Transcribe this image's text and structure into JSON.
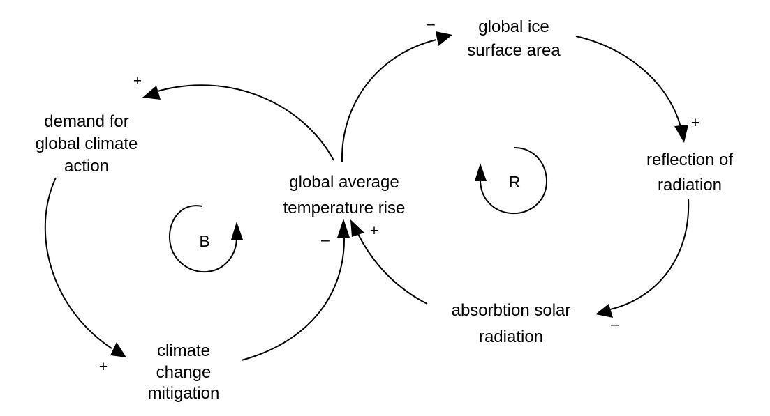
{
  "diagram": {
    "type": "causal-loop",
    "nodes": {
      "global_ice_surface_area": {
        "lines": [
          "global ice",
          "surface area"
        ]
      },
      "reflection_of_radiation": {
        "lines": [
          "reflection of",
          "radiation"
        ]
      },
      "absorbtion_solar_radiation": {
        "lines": [
          "absorbtion solar",
          "radiation"
        ]
      },
      "global_average_temperature_rise": {
        "lines": [
          "global average",
          "temperature rise"
        ]
      },
      "demand_for_global_climate_action": {
        "lines": [
          "demand for",
          "global climate",
          "action"
        ]
      },
      "climate_change_mitigation": {
        "lines": [
          "climate",
          "change",
          "mitigation"
        ]
      }
    },
    "loops": {
      "balancing": {
        "label": "B"
      },
      "reinforcing": {
        "label": "R"
      }
    },
    "links": [
      {
        "from": "global_average_temperature_rise",
        "to": "global_ice_surface_area",
        "polarity": "–"
      },
      {
        "from": "global_ice_surface_area",
        "to": "reflection_of_radiation",
        "polarity": "+"
      },
      {
        "from": "reflection_of_radiation",
        "to": "absorbtion_solar_radiation",
        "polarity": "–"
      },
      {
        "from": "absorbtion_solar_radiation",
        "to": "global_average_temperature_rise",
        "polarity": "+"
      },
      {
        "from": "global_average_temperature_rise",
        "to": "demand_for_global_climate_action",
        "polarity": "+"
      },
      {
        "from": "demand_for_global_climate_action",
        "to": "climate_change_mitigation",
        "polarity": "+"
      },
      {
        "from": "climate_change_mitigation",
        "to": "global_average_temperature_rise",
        "polarity": "–"
      }
    ]
  }
}
